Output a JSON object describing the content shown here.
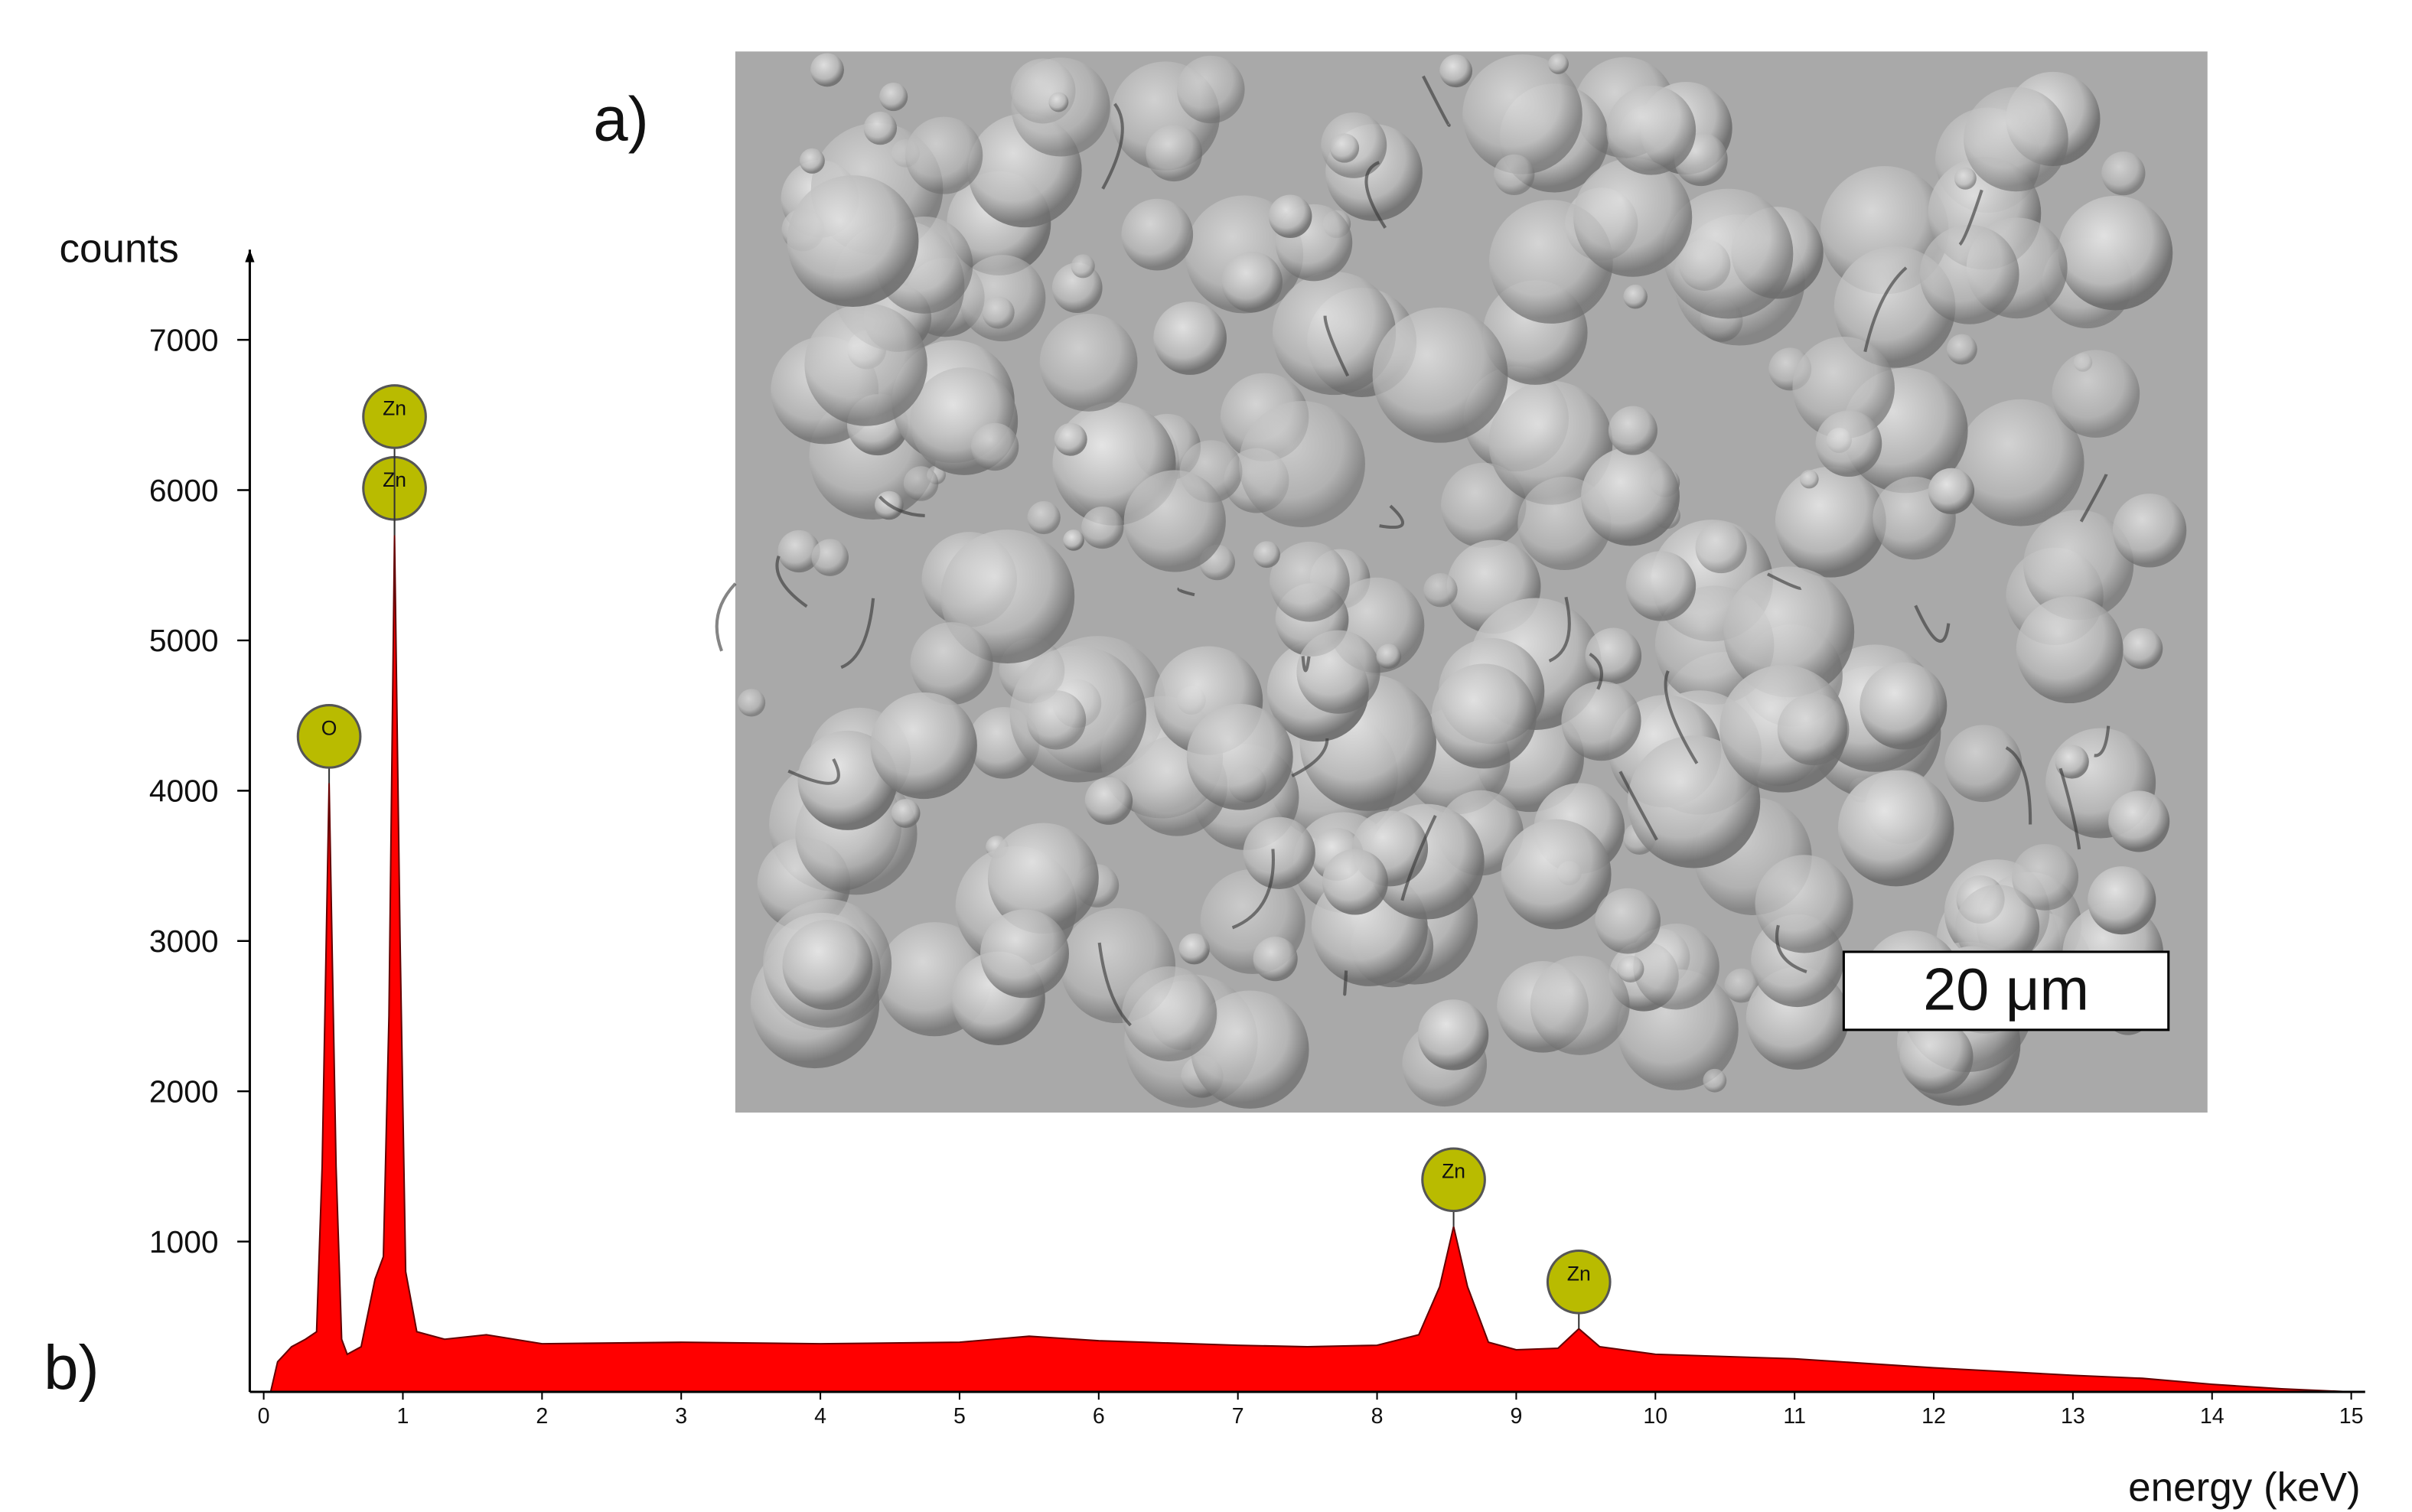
{
  "image": {
    "label": "a)",
    "scale_bar": "20 μm"
  },
  "chart_data": {
    "type": "area",
    "label": "b)",
    "y_label": "counts",
    "x_label": "energy (keV)",
    "color": "#ff0000",
    "x": [
      0.05,
      0.1,
      0.2,
      0.3,
      0.38,
      0.42,
      0.47,
      0.52,
      0.56,
      0.6,
      0.7,
      0.8,
      0.86,
      0.9,
      0.94,
      0.98,
      1.02,
      1.1,
      1.3,
      1.6,
      2,
      3,
      4,
      5,
      5.5,
      6,
      7,
      7.5,
      8,
      8.3,
      8.45,
      8.55,
      8.65,
      8.8,
      9,
      9.3,
      9.45,
      9.6,
      10,
      11,
      12,
      13,
      13.5,
      14,
      14.5,
      15
    ],
    "values": [
      0,
      200,
      300,
      350,
      400,
      1500,
      4050,
      1500,
      350,
      250,
      300,
      750,
      900,
      2500,
      5700,
      3000,
      800,
      400,
      350,
      380,
      320,
      330,
      320,
      330,
      370,
      340,
      310,
      300,
      310,
      380,
      700,
      1100,
      700,
      330,
      280,
      290,
      420,
      300,
      250,
      220,
      160,
      110,
      90,
      50,
      20,
      0
    ],
    "annotations": [
      {
        "text": "O",
        "x": 0.47,
        "y": 4050
      },
      {
        "text": "Zn",
        "x": 0.94,
        "y": 5700
      },
      {
        "text": "Zn",
        "x": 0.94,
        "y": 5700
      },
      {
        "text": "Zn",
        "x": 8.55,
        "y": 1100
      },
      {
        "text": "Zn",
        "x": 9.45,
        "y": 420
      }
    ],
    "xlim": [
      -0.1,
      15.1
    ],
    "ylim": [
      0,
      7600
    ],
    "xticks": [
      0,
      1,
      2,
      3,
      4,
      5,
      6,
      7,
      8,
      9,
      10,
      11,
      12,
      13,
      14,
      15
    ],
    "yticks": [
      1000,
      2000,
      3000,
      4000,
      5000,
      6000,
      7000
    ]
  }
}
